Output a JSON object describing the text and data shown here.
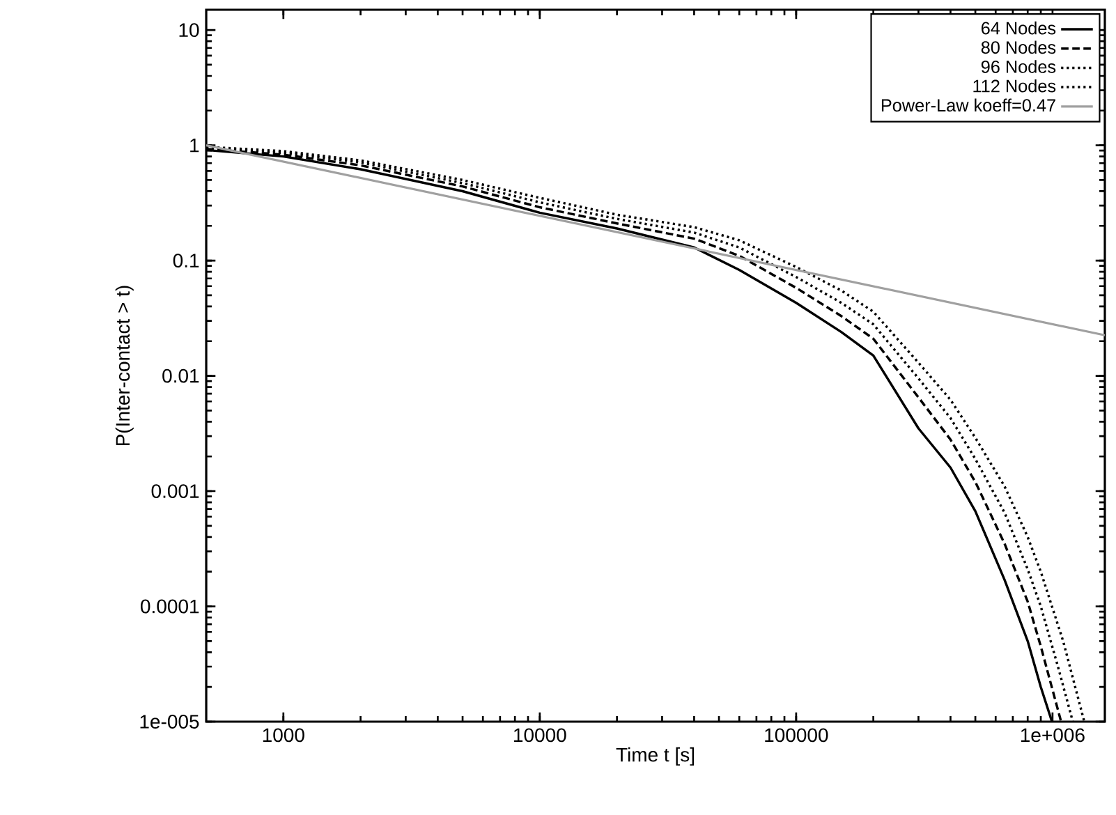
{
  "chart_data": {
    "type": "line",
    "xlabel": "Time t [s]",
    "ylabel": "P(Inter-contact > t)",
    "log": "xy",
    "grid": false,
    "legend": "top right",
    "marker": "none",
    "xlim": [
      500,
      1600000
    ],
    "ylim": [
      1e-05,
      15
    ],
    "xticks": [
      1000,
      10000,
      100000,
      {
        "value": 1000000,
        "label": "1e+006"
      }
    ],
    "yticks": [
      {
        "value": 1e-05,
        "label": "1e-005"
      },
      0.0001,
      0.001,
      0.01,
      0.1,
      1,
      10
    ],
    "series": [
      {
        "name": "64 Nodes",
        "color": "#000000",
        "line_style": "solid",
        "x": [
          500,
          1000,
          2000,
          5000,
          10000,
          20000,
          40000,
          60000,
          100000,
          150000,
          200000,
          300000,
          400000,
          500000,
          650000,
          800000,
          900000,
          995000
        ],
        "values": [
          0.91,
          0.8,
          0.62,
          0.4,
          0.26,
          0.19,
          0.13,
          0.083,
          0.043,
          0.024,
          0.015,
          0.0035,
          0.0016,
          0.00067,
          0.00017,
          5e-05,
          2e-05,
          1e-05
        ]
      },
      {
        "name": "80 Nodes",
        "color": "#000000",
        "line_style": "dashed",
        "x": [
          500,
          1000,
          2000,
          5000,
          10000,
          20000,
          40000,
          60000,
          100000,
          150000,
          200000,
          300000,
          400000,
          500000,
          650000,
          800000,
          900000,
          1080000
        ],
        "values": [
          0.93,
          0.83,
          0.67,
          0.44,
          0.29,
          0.21,
          0.155,
          0.11,
          0.058,
          0.033,
          0.021,
          0.0065,
          0.0028,
          0.0012,
          0.00035,
          0.00011,
          4.5e-05,
          1e-05
        ]
      },
      {
        "name": "96 Nodes",
        "color": "#000000",
        "line_style": "dotted",
        "x": [
          500,
          1000,
          2000,
          5000,
          10000,
          20000,
          40000,
          60000,
          100000,
          150000,
          200000,
          300000,
          400000,
          500000,
          650000,
          800000,
          900000,
          1050000,
          1200000
        ],
        "values": [
          0.95,
          0.86,
          0.71,
          0.47,
          0.32,
          0.23,
          0.175,
          0.13,
          0.072,
          0.043,
          0.028,
          0.0095,
          0.0043,
          0.0019,
          0.00065,
          0.00021,
          0.0001,
          3e-05,
          1e-05
        ]
      },
      {
        "name": "112 Nodes",
        "color": "#000000",
        "line_style": "dotted",
        "x": [
          500,
          1000,
          2000,
          5000,
          10000,
          20000,
          40000,
          60000,
          100000,
          150000,
          200000,
          300000,
          400000,
          500000,
          650000,
          800000,
          900000,
          1100000,
          1330000
        ],
        "values": [
          0.97,
          0.89,
          0.74,
          0.5,
          0.35,
          0.25,
          0.195,
          0.15,
          0.088,
          0.055,
          0.036,
          0.013,
          0.0062,
          0.0029,
          0.0011,
          0.0004,
          0.0002,
          5e-05,
          1e-05
        ]
      },
      {
        "name": "Power-Law koeff=0.47",
        "color": "#a0a0a0",
        "line_style": "solid",
        "x": [
          500,
          1600000
        ],
        "values": [
          1.0,
          0.0225
        ]
      }
    ]
  }
}
